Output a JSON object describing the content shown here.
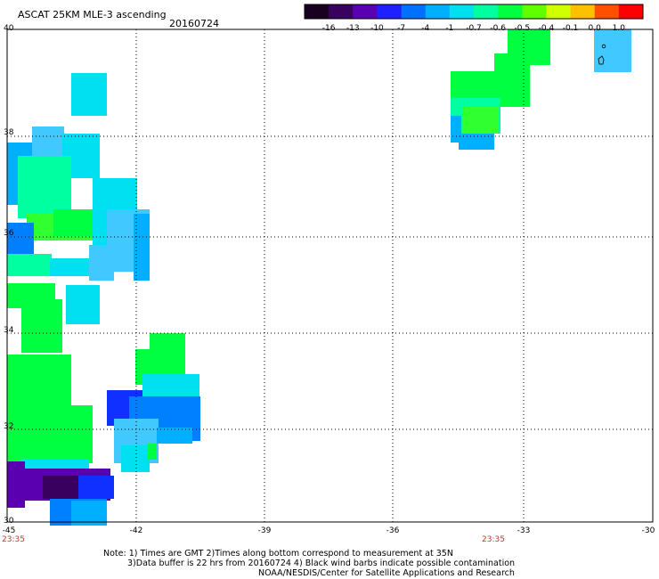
{
  "header": {
    "title": "ASCAT 25KM MLE-3 ascending",
    "date": "20160724"
  },
  "colorbar": {
    "labels": [
      "-16",
      "-13",
      "-10",
      "-7",
      "-4",
      "-1",
      "-0.7",
      "-0.6",
      "-0.5",
      "-0.4",
      "-0.1",
      "0.0",
      "1.0"
    ],
    "colors": [
      "#1a0020",
      "#3a0060",
      "#5a00b0",
      "#2020ff",
      "#0070ff",
      "#00b0ff",
      "#00e0f0",
      "#00ffa0",
      "#00ff40",
      "#60ff00",
      "#d0ff00",
      "#ffc000",
      "#ff5000",
      "#ff0000"
    ]
  },
  "map": {
    "lat_labels": [
      "40",
      "38",
      "36",
      "34",
      "32",
      "30"
    ],
    "lon_labels": [
      "-45",
      "-42",
      "-39",
      "-36",
      "-33",
      "-30"
    ],
    "lat_range": [
      30,
      40
    ],
    "lon_range": [
      -45,
      -30
    ],
    "time_labels": [
      "23:35",
      "23:35"
    ]
  },
  "footer": {
    "note1": "Note: 1) Times are GMT 2)Times along bottom correspond to measurement at 35N",
    "note2": "3)Data buffer is 22 hrs from 20160724 4) Black wind barbs indicate possible contamination",
    "credit": "NOAA/NESDIS/Center for Satellite Applications and Research"
  }
}
